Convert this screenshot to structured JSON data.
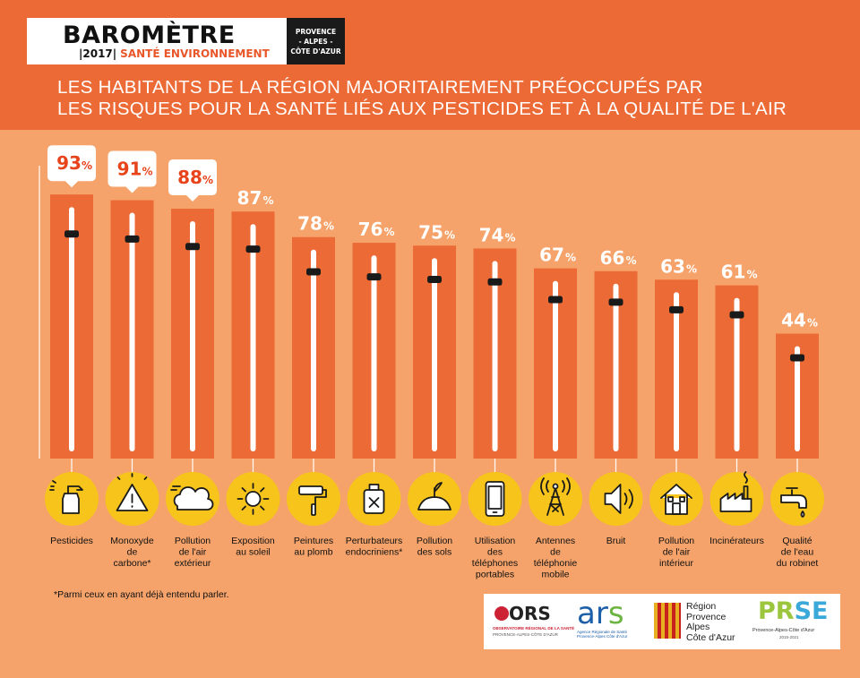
{
  "header": {
    "logo_title": "BAROMÈTRE",
    "logo_year": "|2017|",
    "logo_subtitle": "SANTÉ ENVIRONNEMENT",
    "region_lines": [
      "PROVENCE",
      "- ALPES -",
      "CÔTE D'AZUR"
    ],
    "headline_line1": "LES HABITANTS DE LA RÉGION MAJORITAIREMENT PRÉOCCUPÉS PAR",
    "headline_line2": "LES RISQUES POUR LA SANTÉ LIÉS AUX PESTICIDES ET À LA QUALITÉ DE L'AIR"
  },
  "colors": {
    "header_bg": "#ec6a35",
    "page_bg": "#f5a36a",
    "bar": "#ec6a35",
    "icon_circle": "#f7c41c",
    "highlight_value": "#e8441c"
  },
  "chart_data": {
    "type": "bar",
    "unit": "%",
    "ylim": [
      0,
      100
    ],
    "categories": [
      "Pesticides",
      "Monoxyde de carbone*",
      "Pollution de l'air extérieur",
      "Exposition au soleil",
      "Peintures au plomb",
      "Perturbateurs endocriniens*",
      "Pollution des sols",
      "Utilisation des téléphones portables",
      "Antennes de téléphonie mobile",
      "Bruit",
      "Pollution de l'air intérieur",
      "Incinérateurs",
      "Qualité de l'eau du robinet"
    ],
    "label_lines": [
      [
        "Pesticides"
      ],
      [
        "Monoxyde",
        "de",
        "carbone*"
      ],
      [
        "Pollution",
        "de l'air",
        "extérieur"
      ],
      [
        "Exposition",
        "au soleil"
      ],
      [
        "Peintures",
        "au plomb"
      ],
      [
        "Perturbateurs",
        "endocriniens*"
      ],
      [
        "Pollution",
        "des sols"
      ],
      [
        "Utilisation",
        "des",
        "téléphones",
        "portables"
      ],
      [
        "Antennes",
        "de",
        "téléphonie",
        "mobile"
      ],
      [
        "Bruit"
      ],
      [
        "Pollution",
        "de l'air",
        "intérieur"
      ],
      [
        "Incinérateurs"
      ],
      [
        "Qualité",
        "de l'eau",
        "du robinet"
      ]
    ],
    "values": [
      93,
      91,
      88,
      87,
      78,
      76,
      75,
      74,
      67,
      66,
      63,
      61,
      44
    ],
    "highlighted": [
      true,
      true,
      true,
      false,
      false,
      false,
      false,
      false,
      false,
      false,
      false,
      false,
      false
    ],
    "icons": [
      "spray-bottle-icon",
      "warning-triangle-icon",
      "cloud-icon",
      "sun-icon",
      "paint-roller-icon",
      "bottle-cross-icon",
      "soil-sprout-icon",
      "mobile-phone-icon",
      "antenna-tower-icon",
      "speaker-icon",
      "house-icon",
      "factory-icon",
      "water-tap-icon"
    ]
  },
  "footnote": "*Parmi ceux en ayant déjà entendu parler.",
  "partners": {
    "ors": {
      "name": "ORS",
      "line1": "OBSERVATOIRE RÉGIONAL DE LA SANTÉ",
      "line2": "PROVENCE-ALPES-CÔTE D'AZUR"
    },
    "ars": {
      "name_a": "ar",
      "name_b": "s",
      "line1": "Agence Régionale de Santé Provence-Alpes Côte d'Azur"
    },
    "region": {
      "lines": [
        "Région",
        "Provence",
        "Alpes",
        "Côte d'Azur"
      ]
    },
    "prse": {
      "name_a": "PR",
      "name_b": "SE",
      "line1": "Provence-Alpes-Côte d'Azur",
      "line2": "2015-2021"
    }
  }
}
